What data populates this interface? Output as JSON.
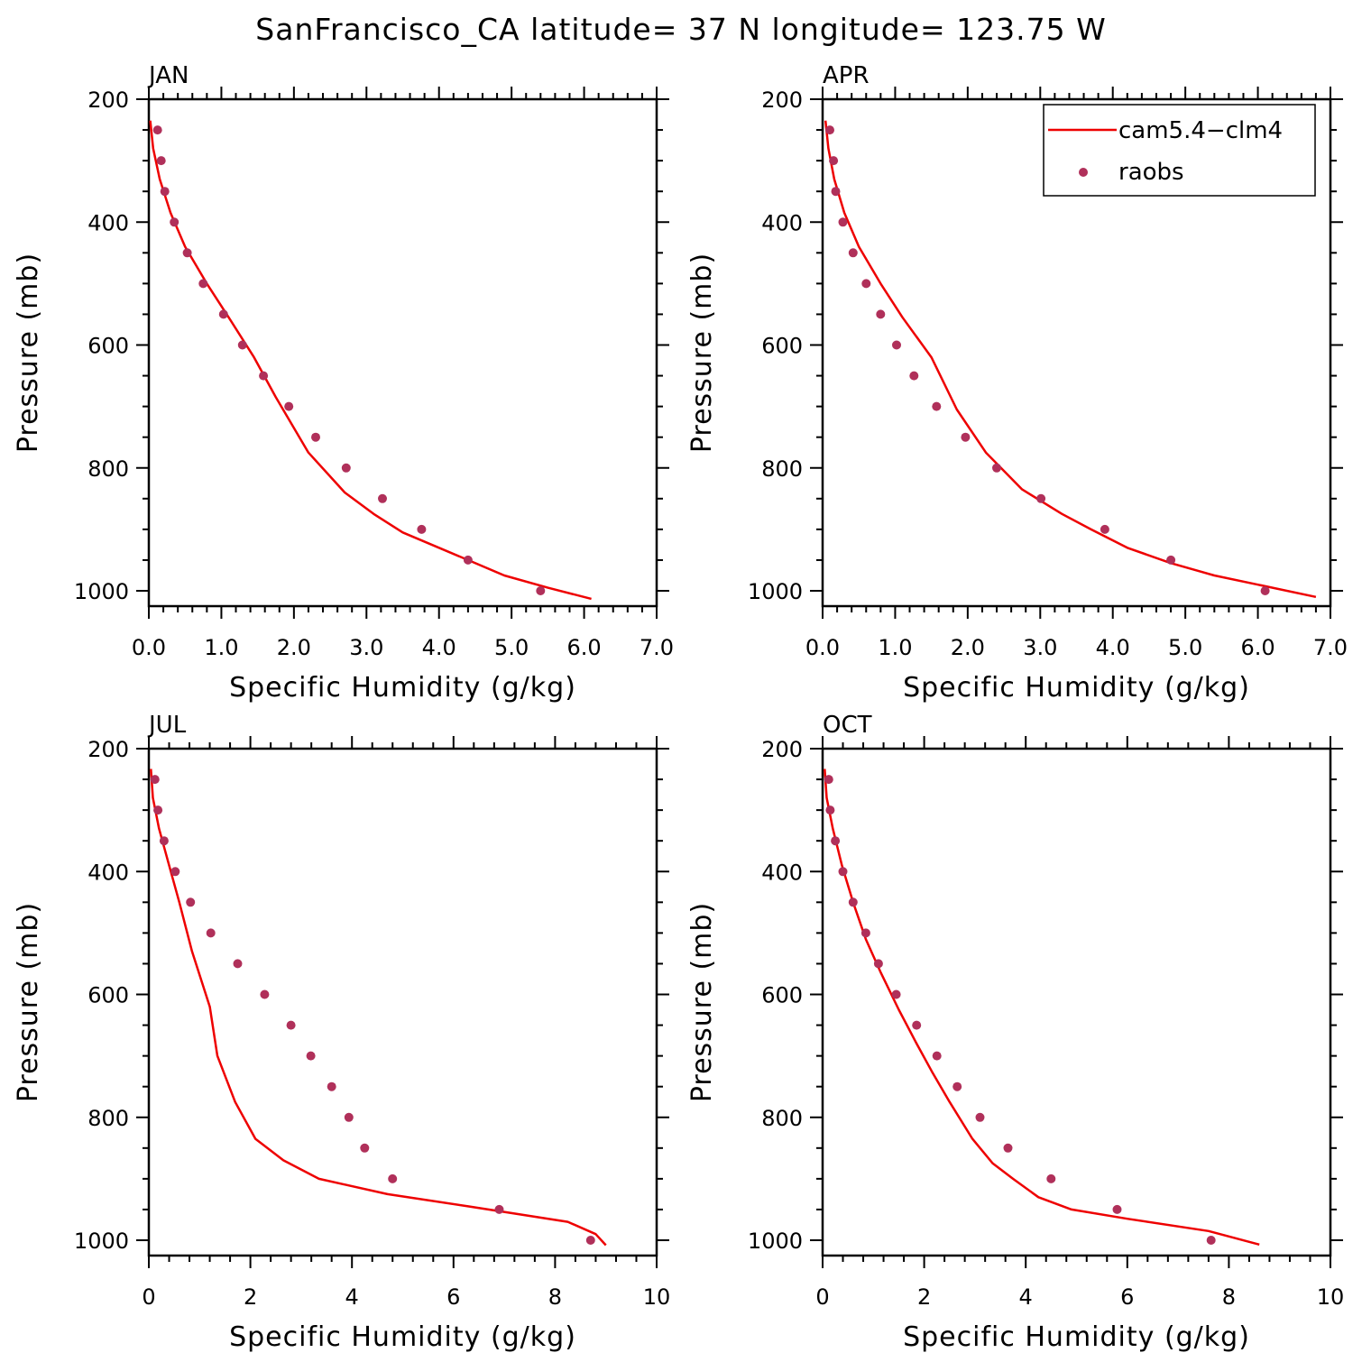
{
  "figure": {
    "title": "SanFrancisco_CA  latitude= 37 N longitude= 123.75 W"
  },
  "legend": {
    "model_label": "cam5.4−clm4",
    "obs_label": "raobs"
  },
  "colors": {
    "model": "#ee0000",
    "obs": "#b0305a",
    "axes": "#000000"
  },
  "chart_data": [
    {
      "type": "line",
      "panel_label": "JAN",
      "xlabel": "Specific Humidity (g/kg)",
      "ylabel": "Pressure (mb)",
      "xlim": [
        0,
        7
      ],
      "ylim": [
        200,
        1000
      ],
      "y_inverted": true,
      "xticks": [
        0,
        1,
        2,
        3,
        4,
        5,
        6,
        7
      ],
      "xtick_labels": [
        "0.0",
        "1.0",
        "2.0",
        "3.0",
        "4.0",
        "5.0",
        "6.0",
        "7.0"
      ],
      "yticks": [
        200,
        400,
        600,
        800,
        1000
      ],
      "ytick_labels": [
        "200",
        "400",
        "600",
        "800",
        "1000"
      ],
      "series": [
        {
          "name": "cam5.4−clm4",
          "kind": "line",
          "x": [
            0.02,
            0.06,
            0.15,
            0.3,
            0.5,
            0.8,
            1.1,
            1.45,
            1.75,
            2.2,
            2.7,
            3.1,
            3.5,
            4.0,
            4.4,
            4.9,
            5.5,
            6.1
          ],
          "y": [
            235,
            280,
            330,
            385,
            440,
            500,
            555,
            620,
            685,
            775,
            840,
            875,
            905,
            930,
            950,
            975,
            995,
            1013
          ]
        },
        {
          "name": "raobs",
          "kind": "scatter",
          "x": [
            0.12,
            0.17,
            0.22,
            0.35,
            0.53,
            0.75,
            1.03,
            1.29,
            1.58,
            1.93,
            2.3,
            2.72,
            3.22,
            3.76,
            4.4,
            5.4
          ],
          "y": [
            250,
            300,
            350,
            400,
            450,
            500,
            550,
            600,
            650,
            700,
            750,
            800,
            850,
            900,
            950,
            1000
          ]
        }
      ]
    },
    {
      "type": "line",
      "panel_label": "APR",
      "xlabel": "Specific Humidity (g/kg)",
      "ylabel": "Pressure (mb)",
      "xlim": [
        0,
        7
      ],
      "ylim": [
        200,
        1000
      ],
      "y_inverted": true,
      "xticks": [
        0,
        1,
        2,
        3,
        4,
        5,
        6,
        7
      ],
      "xtick_labels": [
        "0.0",
        "1.0",
        "2.0",
        "3.0",
        "4.0",
        "5.0",
        "6.0",
        "7.0"
      ],
      "yticks": [
        200,
        400,
        600,
        800,
        1000
      ],
      "ytick_labels": [
        "200",
        "400",
        "600",
        "800",
        "1000"
      ],
      "series": [
        {
          "name": "cam5.4−clm4",
          "kind": "line",
          "x": [
            0.04,
            0.08,
            0.16,
            0.3,
            0.5,
            0.8,
            1.1,
            1.5,
            1.85,
            2.25,
            2.75,
            3.3,
            3.7,
            4.2,
            4.8,
            5.4,
            6.0,
            6.8
          ],
          "y": [
            235,
            280,
            330,
            385,
            440,
            500,
            555,
            620,
            705,
            775,
            835,
            875,
            900,
            930,
            955,
            975,
            990,
            1010
          ]
        },
        {
          "name": "raobs",
          "kind": "scatter",
          "x": [
            0.1,
            0.15,
            0.18,
            0.28,
            0.42,
            0.6,
            0.8,
            1.02,
            1.26,
            1.57,
            1.97,
            2.4,
            3.01,
            3.89,
            4.8,
            6.1
          ],
          "y": [
            250,
            300,
            350,
            400,
            450,
            500,
            550,
            600,
            650,
            700,
            750,
            800,
            850,
            900,
            950,
            1000
          ]
        }
      ]
    },
    {
      "type": "line",
      "panel_label": "JUL",
      "xlabel": "Specific Humidity (g/kg)",
      "ylabel": "Pressure (mb)",
      "xlim": [
        0,
        10
      ],
      "ylim": [
        200,
        1000
      ],
      "y_inverted": true,
      "xticks": [
        0,
        2,
        4,
        6,
        8,
        10
      ],
      "xtick_labels": [
        "0",
        "2",
        "4",
        "6",
        "8",
        "10"
      ],
      "yticks": [
        200,
        400,
        600,
        800,
        1000
      ],
      "ytick_labels": [
        "200",
        "400",
        "600",
        "800",
        "1000"
      ],
      "series": [
        {
          "name": "cam5.4−clm4",
          "kind": "line",
          "x": [
            0.04,
            0.08,
            0.2,
            0.4,
            0.6,
            0.85,
            1.2,
            1.35,
            1.7,
            2.1,
            2.65,
            3.35,
            4.7,
            6.3,
            8.25,
            8.8,
            9.0
          ],
          "y": [
            233,
            280,
            330,
            390,
            450,
            530,
            620,
            700,
            775,
            835,
            870,
            900,
            925,
            945,
            970,
            990,
            1008
          ]
        },
        {
          "name": "raobs",
          "kind": "scatter",
          "x": [
            0.12,
            0.18,
            0.3,
            0.52,
            0.82,
            1.22,
            1.75,
            2.28,
            2.8,
            3.19,
            3.6,
            3.94,
            4.25,
            4.8,
            6.9,
            8.7
          ],
          "y": [
            250,
            300,
            350,
            400,
            450,
            500,
            550,
            600,
            650,
            700,
            750,
            800,
            850,
            900,
            950,
            1000
          ]
        }
      ]
    },
    {
      "type": "line",
      "panel_label": "OCT",
      "xlabel": "Specific Humidity (g/kg)",
      "ylabel": "Pressure (mb)",
      "xlim": [
        0,
        10
      ],
      "ylim": [
        200,
        1000
      ],
      "y_inverted": true,
      "xticks": [
        0,
        2,
        4,
        6,
        8,
        10
      ],
      "xtick_labels": [
        "0",
        "2",
        "4",
        "6",
        "8",
        "10"
      ],
      "yticks": [
        200,
        400,
        600,
        800,
        1000
      ],
      "ytick_labels": [
        "200",
        "400",
        "600",
        "800",
        "1000"
      ],
      "series": [
        {
          "name": "cam5.4−clm4",
          "kind": "line",
          "x": [
            0.04,
            0.08,
            0.2,
            0.38,
            0.6,
            0.85,
            1.15,
            1.5,
            1.85,
            2.15,
            2.5,
            2.95,
            3.35,
            3.75,
            4.25,
            4.9,
            6.0,
            7.6,
            8.6
          ],
          "y": [
            233,
            280,
            330,
            390,
            450,
            510,
            565,
            625,
            680,
            725,
            775,
            835,
            875,
            900,
            930,
            950,
            965,
            985,
            1007
          ]
        },
        {
          "name": "raobs",
          "kind": "scatter",
          "x": [
            0.12,
            0.15,
            0.25,
            0.4,
            0.6,
            0.85,
            1.1,
            1.45,
            1.85,
            2.25,
            2.65,
            3.1,
            3.65,
            4.5,
            5.8,
            7.65
          ],
          "y": [
            250,
            300,
            350,
            400,
            450,
            500,
            550,
            600,
            650,
            700,
            750,
            800,
            850,
            900,
            950,
            1000
          ]
        }
      ]
    }
  ]
}
